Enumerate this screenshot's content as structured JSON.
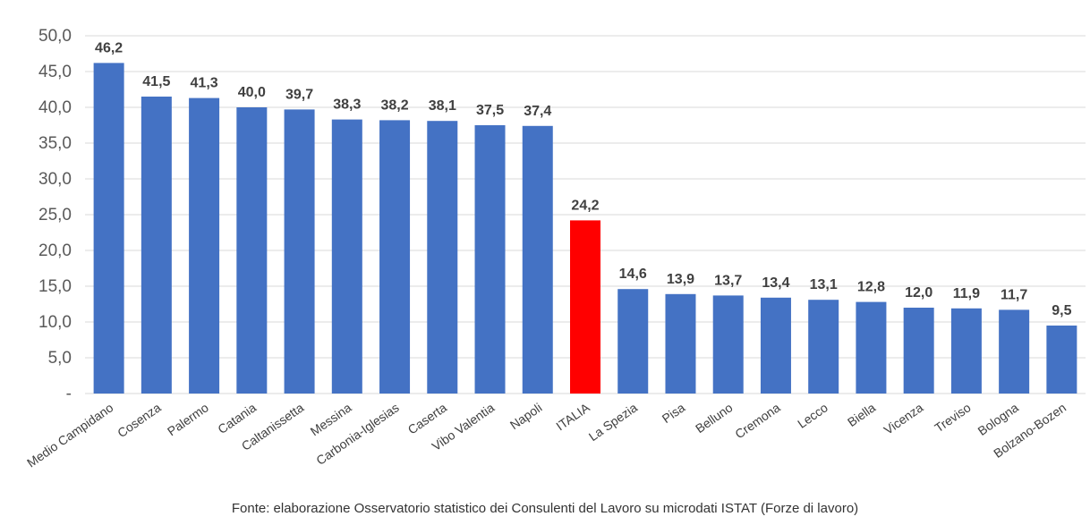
{
  "chart_data": {
    "type": "bar",
    "categories": [
      "Medio Campidano",
      "Cosenza",
      "Palermo",
      "Catania",
      "Caltanissetta",
      "Messina",
      "Carbonia-Iglesias",
      "Caserta",
      "Vibo Valentia",
      "Napoli",
      "ITALIA",
      "La Spezia",
      "Pisa",
      "Belluno",
      "Cremona",
      "Lecco",
      "Biella",
      "Vicenza",
      "Treviso",
      "Bologna",
      "Bolzano-Bozen"
    ],
    "values": [
      46.2,
      41.5,
      41.3,
      40.0,
      39.7,
      38.3,
      38.2,
      38.1,
      37.5,
      37.4,
      24.2,
      14.6,
      13.9,
      13.7,
      13.4,
      13.1,
      12.8,
      12.0,
      11.9,
      11.7,
      9.5
    ],
    "value_labels": [
      "46,2",
      "41,5",
      "41,3",
      "40,0",
      "39,7",
      "38,3",
      "38,2",
      "38,1",
      "37,5",
      "37,4",
      "24,2",
      "14,6",
      "13,9",
      "13,7",
      "13,4",
      "13,1",
      "12,8",
      "12,0",
      "11,9",
      "11,7",
      "9,5"
    ],
    "y_ticks": [
      0,
      5,
      10,
      15,
      20,
      25,
      30,
      35,
      40,
      45,
      50
    ],
    "y_tick_labels": [
      "-",
      "5,0",
      "10,0",
      "15,0",
      "20,0",
      "25,0",
      "30,0",
      "35,0",
      "40,0",
      "45,0",
      "50,0"
    ],
    "ylim": [
      0,
      50
    ],
    "highlight_category": "ITALIA",
    "bar_color": "#4472C4",
    "highlight_color": "#FF0000",
    "grid": true,
    "grid_color": "#d9d9d9",
    "legend": "none"
  },
  "source_note": "Fonte: elaborazione Osservatorio statistico dei Consulenti del Lavoro su microdati ISTAT (Forze di lavoro)"
}
